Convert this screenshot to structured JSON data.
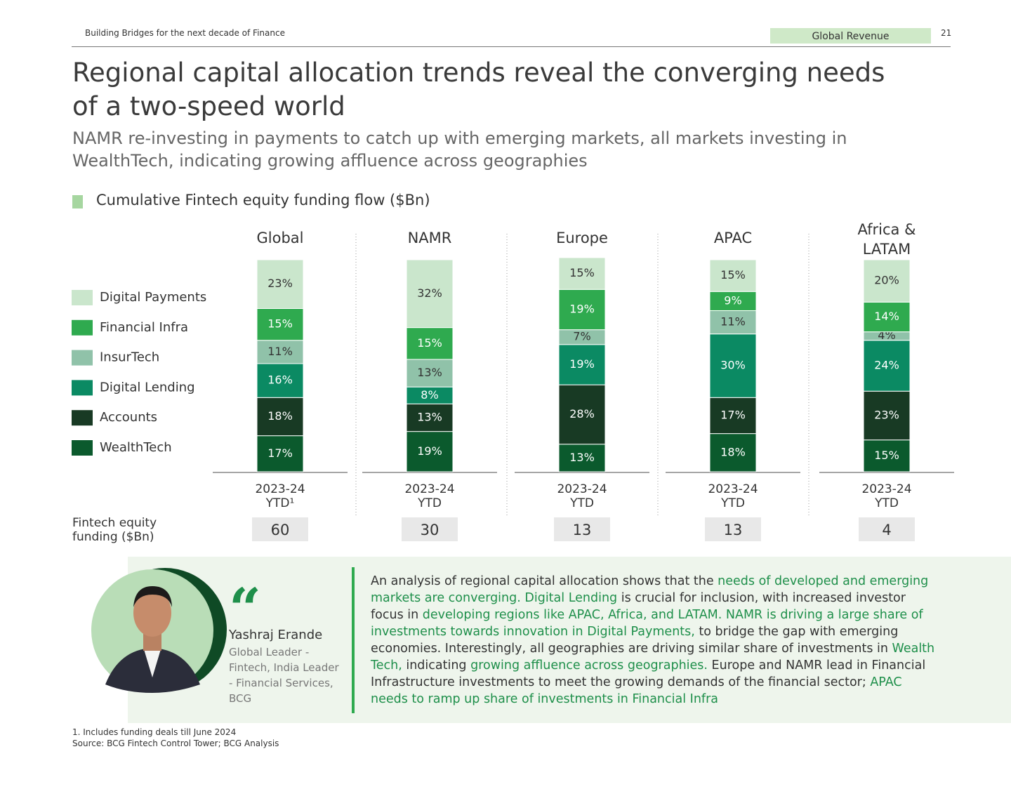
{
  "header": {
    "running_title": "Building Bridges for the next decade of Finance",
    "section": "Global Revenue",
    "page_number": "21"
  },
  "title": "Regional capital allocation trends reveal the converging needs of a two-speed world",
  "subtitle": "NAMR re-investing in payments to catch up with emerging markets, all markets investing in WealthTech, indicating growing affluence across geographies",
  "chart_data": {
    "type": "stacked_bar",
    "title": "Cumulative Fintech equity funding flow ($Bn)",
    "categories": [
      "Global",
      "NAMR",
      "Europe",
      "APAC",
      "Africa &\nLATAM"
    ],
    "period_labels": [
      "2023-24\nYTD¹",
      "2023-24\nYTD",
      "2023-24\nYTD",
      "2023-24\nYTD",
      "2023-24\nYTD"
    ],
    "series": [
      {
        "name": "Digital Payments",
        "color": "#cae6cc",
        "values": [
          23,
          32,
          15,
          15,
          20
        ],
        "value_labels": [
          "23%",
          "32%",
          "15%",
          "15%",
          "20%"
        ]
      },
      {
        "name": "Financial Infra",
        "color": "#2faa4f",
        "values": [
          15,
          15,
          19,
          9,
          14
        ],
        "value_labels": [
          "15%",
          "15%",
          "19%",
          "9%",
          "14%"
        ]
      },
      {
        "name": "InsurTech",
        "color": "#90c2a9",
        "values": [
          11,
          13,
          7,
          11,
          4
        ],
        "value_labels": [
          "11%",
          "13%",
          "7%",
          "11%",
          "4%"
        ]
      },
      {
        "name": "Digital Lending",
        "color": "#0b8a63",
        "values": [
          16,
          8,
          19,
          30,
          24
        ],
        "value_labels": [
          "16%",
          "8%",
          "19%",
          "30%",
          "24%"
        ]
      },
      {
        "name": "Accounts",
        "color": "#183a24",
        "values": [
          18,
          13,
          28,
          17,
          23
        ],
        "value_labels": [
          "18%",
          "13%",
          "28%",
          "17%",
          "23%"
        ]
      },
      {
        "name": "WealthTech",
        "color": "#0b5a2d",
        "values": [
          17,
          19,
          13,
          18,
          15
        ],
        "value_labels": [
          "17%",
          "19%",
          "13%",
          "18%",
          "15%"
        ]
      }
    ],
    "funding_label": "Fintech equity\nfunding ($Bn)",
    "funding": [
      60,
      30,
      13,
      13,
      4
    ]
  },
  "quote": {
    "name": "Yashraj Erande",
    "role": "Global Leader -\nFintech, India Leader\n- Financial Services,\nBCG",
    "paragraph": [
      {
        "text": "An analysis of regional capital allocation shows that the ",
        "color": "#333333"
      },
      {
        "text": "needs of developed and emerging markets are converging. Digital Lending",
        "color": "#1e8f4a"
      },
      {
        "text": " is crucial for inclusion, with increased investor focus in ",
        "color": "#333333"
      },
      {
        "text": "developing regions like APAC, Africa, and LATAM. NAMR is driving a large share of investments towards innovation in Digital Payments,",
        "color": "#1e8f4a"
      },
      {
        "text": " to bridge the gap with emerging economies. Interestingly, all geographies are driving similar share of investments in ",
        "color": "#333333"
      },
      {
        "text": "Wealth Tech,",
        "color": "#1e8f4a"
      },
      {
        "text": " indicating ",
        "color": "#333333"
      },
      {
        "text": "growing affluence across geographies.",
        "color": "#1e8f4a"
      },
      {
        "text": " Europe and NAMR lead in Financial Infrastructure investments to meet the growing demands of the financial sector; ",
        "color": "#333333"
      },
      {
        "text": "APAC needs to ramp up share of investments in Financial Infra",
        "color": "#1e8f4a"
      }
    ]
  },
  "footnotes": [
    "1. Includes funding deals till June 2024",
    "Source: BCG Fintech Control Tower; BCG Analysis"
  ]
}
